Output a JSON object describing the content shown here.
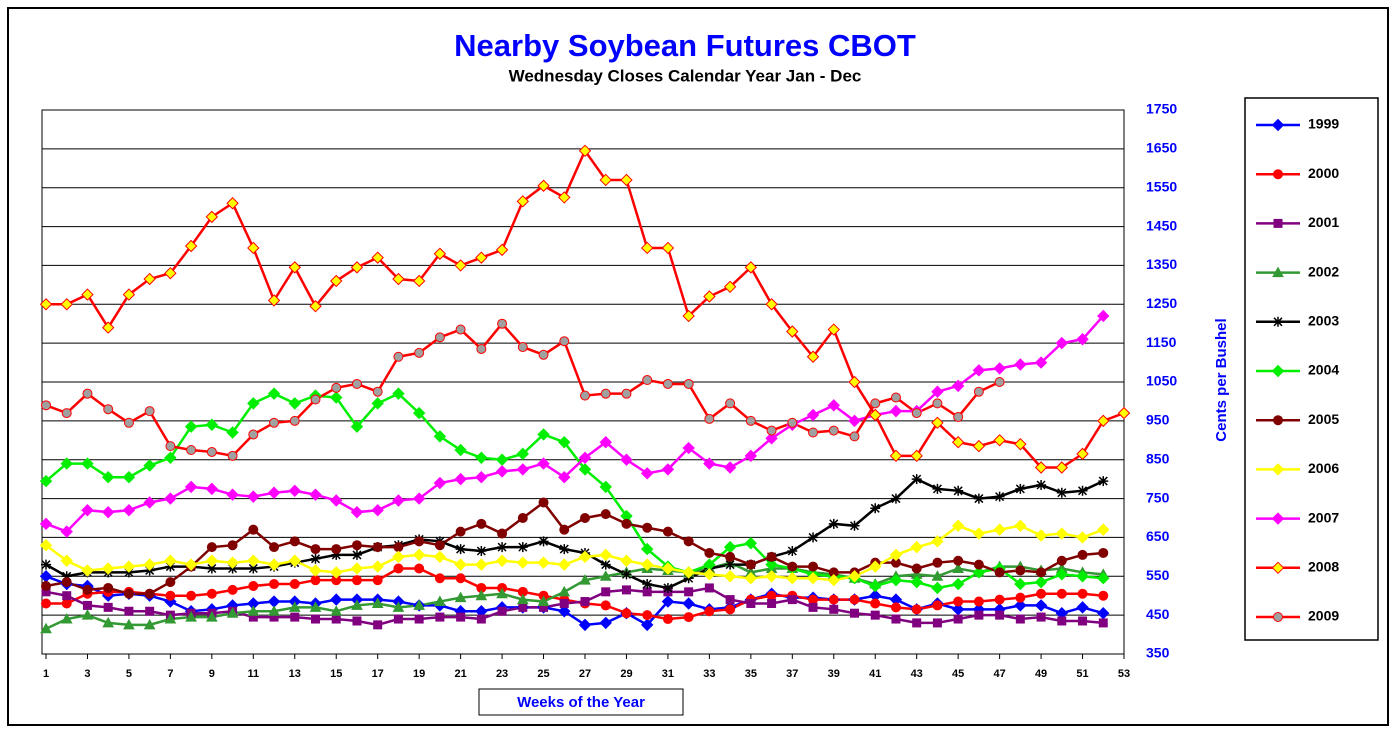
{
  "chart_data": {
    "type": "line",
    "title": "Nearby Soybean Futures CBOT",
    "subtitle": "Wednesday Closes Calendar Year Jan - Dec",
    "x_label": "Weeks of the Year",
    "y_label": "Cents per Bushel",
    "x": [
      1,
      2,
      3,
      4,
      5,
      6,
      7,
      8,
      9,
      10,
      11,
      12,
      13,
      14,
      15,
      16,
      17,
      18,
      19,
      20,
      21,
      22,
      23,
      24,
      25,
      26,
      27,
      28,
      29,
      30,
      31,
      32,
      33,
      34,
      35,
      36,
      37,
      38,
      39,
      40,
      41,
      42,
      43,
      44,
      45,
      46,
      47,
      48,
      49,
      50,
      51,
      52,
      53
    ],
    "xlim": [
      1,
      53
    ],
    "xticks": [
      1,
      3,
      5,
      7,
      9,
      11,
      13,
      15,
      17,
      19,
      21,
      23,
      25,
      27,
      29,
      31,
      33,
      35,
      37,
      39,
      41,
      43,
      45,
      47,
      49,
      51,
      53
    ],
    "ylim": [
      350,
      1750
    ],
    "yticks": [
      350,
      450,
      550,
      650,
      750,
      850,
      950,
      1050,
      1150,
      1250,
      1350,
      1450,
      1550,
      1650,
      1750
    ],
    "y_axis_side": "right",
    "grid": true,
    "legend": "right",
    "series": [
      {
        "name": "1999",
        "color": "#0000ff",
        "marker": "diamond",
        "marker_color": "#0000ff",
        "values": [
          550,
          530,
          525,
          500,
          505,
          500,
          485,
          460,
          465,
          475,
          480,
          485,
          485,
          480,
          490,
          490,
          490,
          485,
          475,
          475,
          460,
          460,
          470,
          470,
          470,
          460,
          425,
          430,
          455,
          425,
          485,
          480,
          465,
          470,
          490,
          505,
          495,
          495,
          490,
          490,
          500,
          490,
          465,
          480,
          465,
          465,
          465,
          475,
          475,
          455,
          470,
          455,
          null
        ]
      },
      {
        "name": "2000",
        "color": "#ff0000",
        "marker": "circle",
        "marker_color": "#ff0000",
        "values": [
          480,
          480,
          505,
          510,
          510,
          505,
          500,
          500,
          505,
          515,
          525,
          530,
          530,
          540,
          540,
          540,
          540,
          570,
          570,
          545,
          545,
          520,
          520,
          510,
          500,
          490,
          480,
          475,
          455,
          450,
          440,
          445,
          460,
          465,
          490,
          500,
          500,
          490,
          490,
          490,
          480,
          470,
          465,
          475,
          485,
          485,
          490,
          495,
          505,
          505,
          505,
          500,
          null
        ]
      },
      {
        "name": "2001",
        "color": "#800080",
        "marker": "square",
        "marker_color": "#800080",
        "values": [
          510,
          500,
          475,
          470,
          460,
          460,
          450,
          455,
          455,
          460,
          445,
          445,
          445,
          440,
          440,
          435,
          425,
          440,
          440,
          445,
          445,
          440,
          460,
          470,
          470,
          480,
          485,
          510,
          515,
          510,
          510,
          510,
          520,
          490,
          480,
          480,
          490,
          470,
          465,
          455,
          450,
          440,
          430,
          430,
          440,
          450,
          450,
          440,
          445,
          435,
          435,
          430,
          null
        ]
      },
      {
        "name": "2002",
        "color": "#339933",
        "marker": "triangle",
        "marker_color": "#339933",
        "values": [
          415,
          440,
          450,
          430,
          425,
          425,
          440,
          445,
          445,
          455,
          460,
          460,
          470,
          470,
          460,
          475,
          480,
          470,
          475,
          485,
          495,
          500,
          505,
          490,
          485,
          510,
          540,
          550,
          560,
          570,
          565,
          560,
          570,
          585,
          560,
          570,
          570,
          560,
          555,
          545,
          530,
          550,
          555,
          550,
          570,
          560,
          575,
          575,
          565,
          570,
          560,
          555,
          null
        ]
      },
      {
        "name": "2003",
        "color": "#000000",
        "marker": "star",
        "marker_color": "#000000",
        "values": [
          580,
          550,
          560,
          560,
          560,
          565,
          575,
          575,
          570,
          570,
          570,
          575,
          585,
          595,
          605,
          605,
          625,
          630,
          645,
          640,
          620,
          615,
          625,
          625,
          640,
          620,
          610,
          580,
          555,
          530,
          520,
          545,
          570,
          580,
          580,
          600,
          615,
          650,
          685,
          680,
          725,
          750,
          800,
          775,
          770,
          750,
          755,
          775,
          785,
          765,
          770,
          795,
          null
        ]
      },
      {
        "name": "2004",
        "color": "#00ee00",
        "marker": "diamond",
        "marker_color": "#00ee00",
        "values": [
          795,
          840,
          840,
          805,
          805,
          835,
          855,
          935,
          940,
          920,
          995,
          1020,
          995,
          1015,
          1010,
          935,
          995,
          1020,
          970,
          910,
          875,
          855,
          850,
          865,
          915,
          895,
          825,
          780,
          705,
          620,
          575,
          560,
          580,
          625,
          635,
          580,
          570,
          555,
          550,
          545,
          525,
          540,
          535,
          520,
          530,
          560,
          570,
          530,
          535,
          555,
          550,
          545,
          null
        ]
      },
      {
        "name": "2005",
        "color": "#800000",
        "marker": "circle",
        "marker_color": "#800000",
        "values": [
          525,
          535,
          515,
          520,
          505,
          505,
          535,
          575,
          625,
          630,
          670,
          625,
          640,
          620,
          620,
          630,
          625,
          625,
          640,
          630,
          665,
          685,
          660,
          700,
          740,
          670,
          700,
          710,
          685,
          675,
          665,
          640,
          610,
          600,
          580,
          600,
          575,
          575,
          560,
          560,
          585,
          585,
          570,
          585,
          590,
          580,
          560,
          565,
          560,
          590,
          605,
          610,
          null
        ]
      },
      {
        "name": "2006",
        "color": "#ffff00",
        "marker": "diamond",
        "marker_color": "#ffff00",
        "values": [
          630,
          590,
          565,
          570,
          575,
          580,
          590,
          580,
          590,
          585,
          590,
          580,
          590,
          565,
          560,
          570,
          575,
          600,
          605,
          600,
          580,
          580,
          590,
          585,
          585,
          580,
          600,
          605,
          590,
          580,
          570,
          560,
          555,
          550,
          545,
          550,
          545,
          545,
          540,
          550,
          575,
          605,
          625,
          640,
          680,
          660,
          670,
          680,
          655,
          660,
          650,
          670,
          null
        ]
      },
      {
        "name": "2007",
        "color": "#ff00ff",
        "marker": "diamond",
        "marker_color": "#ff00ff",
        "values": [
          685,
          665,
          720,
          715,
          720,
          740,
          750,
          780,
          775,
          760,
          755,
          765,
          770,
          760,
          745,
          715,
          720,
          745,
          750,
          790,
          800,
          805,
          820,
          825,
          840,
          805,
          855,
          895,
          850,
          815,
          825,
          880,
          840,
          830,
          860,
          905,
          940,
          965,
          990,
          950,
          965,
          975,
          975,
          1025,
          1040,
          1080,
          1085,
          1095,
          1100,
          1150,
          1160,
          1220,
          null
        ]
      },
      {
        "name": "2008",
        "color": "#ff0000",
        "marker": "diamond",
        "marker_color": "#ffff00",
        "values": [
          1250,
          1250,
          1275,
          1190,
          1275,
          1315,
          1330,
          1400,
          1475,
          1510,
          1395,
          1260,
          1345,
          1245,
          1310,
          1345,
          1370,
          1315,
          1310,
          1380,
          1350,
          1370,
          1390,
          1515,
          1555,
          1525,
          1645,
          1570,
          1570,
          1395,
          1395,
          1220,
          1270,
          1295,
          1345,
          1250,
          1180,
          1115,
          1185,
          1050,
          965,
          860,
          860,
          945,
          895,
          885,
          900,
          890,
          830,
          830,
          865,
          950,
          970
        ]
      },
      {
        "name": "2009",
        "color": "#ff0000",
        "marker": "circle",
        "marker_color": "#a0a0a0",
        "values": [
          990,
          970,
          1020,
          980,
          945,
          975,
          885,
          875,
          870,
          860,
          915,
          945,
          950,
          1005,
          1035,
          1045,
          1025,
          1115,
          1125,
          1165,
          1185,
          1135,
          1200,
          1140,
          1120,
          1155,
          1015,
          1020,
          1020,
          1055,
          1045,
          1045,
          955,
          995,
          950,
          925,
          945,
          920,
          925,
          910,
          995,
          1010,
          970,
          995,
          960,
          1025,
          1050,
          null,
          null,
          null,
          null,
          null,
          null
        ]
      }
    ]
  }
}
